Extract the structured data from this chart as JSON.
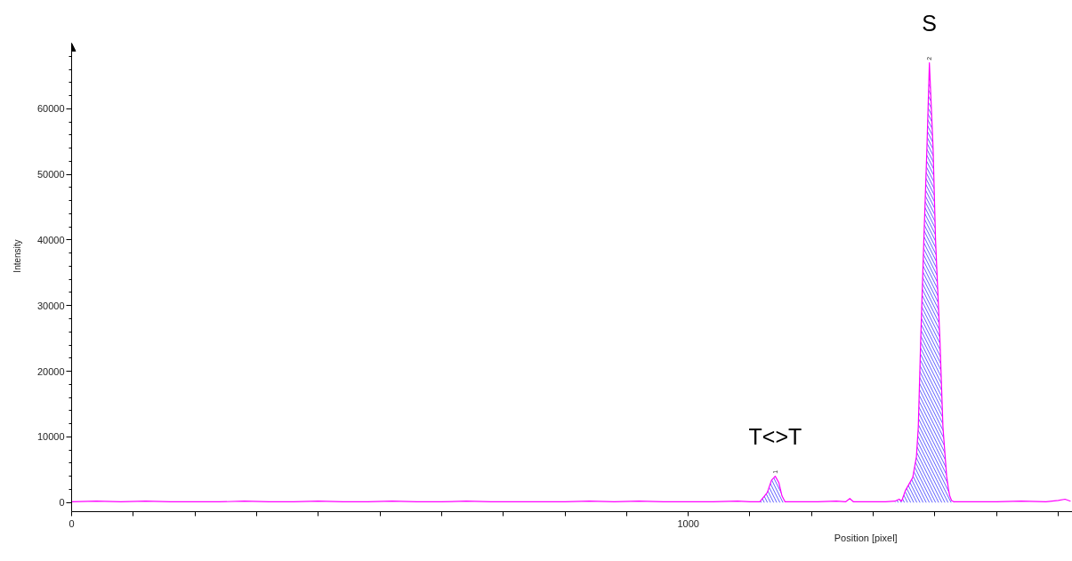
{
  "chart_data": {
    "type": "line",
    "xlabel": "Position [pixel]",
    "ylabel": "Intensity",
    "xlim": [
      0,
      1623
    ],
    "ylim": [
      -1400,
      70000
    ],
    "xticks": [
      0,
      {
        "value": 100,
        "label": null
      },
      {
        "value": 200,
        "label": null
      },
      {
        "value": 300,
        "label": null
      },
      {
        "value": 400,
        "label": null
      },
      {
        "value": 500,
        "label": null
      },
      {
        "value": 600,
        "label": null
      },
      {
        "value": 700,
        "label": null
      },
      {
        "value": 800,
        "label": null
      },
      {
        "value": 900,
        "label": null
      },
      1000,
      {
        "value": 1100,
        "label": null
      },
      {
        "value": 1200,
        "label": null
      },
      {
        "value": 1300,
        "label": null
      },
      {
        "value": 1400,
        "label": null
      },
      {
        "value": 1500,
        "label": null
      },
      {
        "value": 1600,
        "label": null
      }
    ],
    "yticks": [
      0,
      {
        "value": 2000,
        "label": null
      },
      {
        "value": 4000,
        "label": null
      },
      {
        "value": 6000,
        "label": null
      },
      {
        "value": 8000,
        "label": null
      },
      10000,
      {
        "value": 12000,
        "label": null
      },
      {
        "value": 14000,
        "label": null
      },
      {
        "value": 16000,
        "label": null
      },
      {
        "value": 18000,
        "label": null
      },
      20000,
      {
        "value": 22000,
        "label": null
      },
      {
        "value": 24000,
        "label": null
      },
      {
        "value": 26000,
        "label": null
      },
      {
        "value": 28000,
        "label": null
      },
      30000,
      {
        "value": 32000,
        "label": null
      },
      {
        "value": 34000,
        "label": null
      },
      {
        "value": 36000,
        "label": null
      },
      {
        "value": 38000,
        "label": null
      },
      40000,
      {
        "value": 42000,
        "label": null
      },
      {
        "value": 44000,
        "label": null
      },
      {
        "value": 46000,
        "label": null
      },
      {
        "value": 48000,
        "label": null
      },
      50000,
      {
        "value": 52000,
        "label": null
      },
      {
        "value": 54000,
        "label": null
      },
      {
        "value": 56000,
        "label": null
      },
      {
        "value": 58000,
        "label": null
      },
      60000,
      {
        "value": 62000,
        "label": null
      },
      {
        "value": 64000,
        "label": null
      },
      {
        "value": 66000,
        "label": null
      },
      {
        "value": 68000,
        "label": null
      }
    ],
    "annotations": [
      {
        "text": "T<>T",
        "x": 1141,
        "y": 4000
      },
      {
        "text": "S",
        "x": 1391,
        "y": 67000
      }
    ],
    "series": [
      {
        "name": "1",
        "type": "area",
        "color": "#3333ff",
        "x": [
          1116,
          1128,
          1135,
          1141,
          1147,
          1152,
          1157
        ],
        "values": [
          100,
          1500,
          3400,
          4000,
          3000,
          1000,
          100
        ]
      },
      {
        "name": "2",
        "type": "area",
        "color": "#3333ff",
        "x": [
          1335,
          1342,
          1346,
          1352,
          1364,
          1370,
          1373,
          1377,
          1382,
          1387,
          1391,
          1397,
          1401,
          1408,
          1413,
          1419,
          1422,
          1424,
          1427,
          1431
        ],
        "values": [
          200,
          500,
          200,
          1800,
          3800,
          7000,
          11500,
          25000,
          40000,
          54000,
          67000,
          54000,
          40000,
          25000,
          11500,
          4000,
          2000,
          1000,
          300,
          100
        ]
      },
      {
        "color": "#ff00ff",
        "x": [
          0,
          40,
          80,
          120,
          160,
          200,
          240,
          280,
          320,
          360,
          400,
          440,
          480,
          520,
          560,
          600,
          640,
          680,
          720,
          760,
          800,
          840,
          880,
          920,
          960,
          1000,
          1040,
          1080,
          1100,
          1116,
          1128,
          1135,
          1141,
          1147,
          1152,
          1157,
          1180,
          1210,
          1240,
          1255,
          1262,
          1268,
          1290,
          1320,
          1335,
          1342,
          1346,
          1352,
          1364,
          1370,
          1373,
          1377,
          1382,
          1387,
          1391,
          1397,
          1401,
          1408,
          1413,
          1419,
          1422,
          1424,
          1427,
          1431,
          1460,
          1500,
          1540,
          1580,
          1600,
          1611,
          1620
        ],
        "values": [
          100,
          200,
          100,
          200,
          100,
          100,
          100,
          200,
          100,
          100,
          200,
          100,
          100,
          200,
          100,
          100,
          200,
          100,
          100,
          100,
          100,
          200,
          100,
          200,
          100,
          100,
          100,
          200,
          100,
          100,
          1500,
          3400,
          4000,
          3000,
          1000,
          100,
          100,
          100,
          200,
          100,
          600,
          100,
          100,
          100,
          200,
          500,
          200,
          1800,
          3800,
          7000,
          11500,
          25000,
          40000,
          54000,
          67000,
          54000,
          40000,
          25000,
          11500,
          4000,
          2000,
          1000,
          300,
          100,
          100,
          100,
          200,
          100,
          300,
          500,
          200
        ]
      }
    ]
  }
}
